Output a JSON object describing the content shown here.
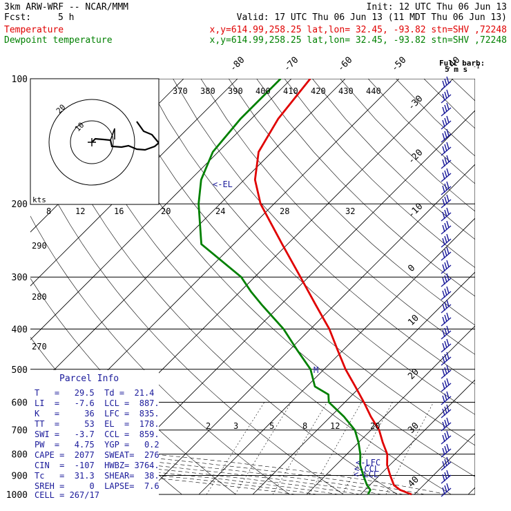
{
  "header": {
    "title": "3km ARW-WRF -- NCAR/MMM",
    "init": "Init: 12 UTC Thu 06 Jun 13",
    "fcst_label": "Fcst:",
    "fcst_value": "5 h",
    "valid": "Valid: 17 UTC Thu 06 Jun 13 (11 MDT Thu 06 Jun 13)",
    "temp_label": "Temperature",
    "dew_label": "Dewpoint temperature",
    "temp_loc": "x,y=614.99,258.25   lat,lon= 32.45, -93.82  stn=SHV ,72248",
    "dew_loc": "x,y=614.99,258.25   lat,lon= 32.45, -93.82  stn=SHV ,72248"
  },
  "colors": {
    "temperature": "#e00000",
    "dewpoint": "#008000",
    "barbs": "#1a1a9a",
    "grid": "#000000"
  },
  "barb_legend": {
    "title": "Full barb:",
    "value": "5 m s",
    "unit_sup": "-1"
  },
  "hodograph": {
    "units": "kts",
    "rings": [
      "10",
      "20"
    ]
  },
  "theta_labels": [
    "370",
    "380",
    "390",
    "400",
    "410",
    "420",
    "430",
    "440"
  ],
  "inset_temp_labels": [
    "8",
    "12",
    "16",
    "20",
    "24",
    "28",
    "32"
  ],
  "left_theta_labels": [
    "290",
    "280",
    "270"
  ],
  "mixing_ratio_labels": [
    "2",
    "3",
    "5",
    "8",
    "12",
    "20"
  ],
  "markers": {
    "el": "<-EL",
    "lfc": "<-LFC",
    "ccl": "<-CCL",
    "lcl": "<-LCL",
    "m": "M"
  },
  "parcel": {
    "title": "Parcel Info",
    "rows": [
      "T   =   29.5  Td =  21.4",
      "LI  =   -7.6  LCL =  887.",
      "K   =     36  LFC =  835.",
      "TT  =     53  EL  =  178.",
      "SWI =   -3.7  CCL =  859.",
      "PW  =   4.75  YGP =   0.2",
      "CAPE =  2077  SWEAT=  276",
      "CIN  =  -107  HWBZ= 3764.",
      "Tc   =  31.3  SHEAR=  38.",
      "SREH =     0  LAPSE=  7.6",
      "CELL = 267/17"
    ]
  },
  "chart_data": {
    "type": "line",
    "title": "3km ARW-WRF -- NCAR/MMM",
    "xlabel": "",
    "ylabel": "",
    "pressure_levels": [
      1000,
      900,
      800,
      700,
      600,
      500,
      400,
      300,
      200,
      100
    ],
    "pressure_tick_labels": [
      "100",
      "200",
      "300",
      "400",
      "500",
      "600",
      "700",
      "800",
      "900",
      "1000"
    ],
    "temperature_axis_labels": [
      "-80",
      "-70",
      "-60",
      "-50",
      "-40",
      "-30",
      "-20",
      "-10",
      "0",
      "10",
      "20",
      "30",
      "40"
    ],
    "temperature_range": [
      -40,
      40
    ],
    "pressure_range": [
      100,
      1000
    ],
    "log_pressure": true,
    "grid": true,
    "series": [
      {
        "name": "Temperature",
        "color": "#e00000",
        "points": [
          [
            1000,
            29.5
          ],
          [
            975,
            26.5
          ],
          [
            950,
            24.5
          ],
          [
            900,
            22.0
          ],
          [
            850,
            19.5
          ],
          [
            800,
            17.5
          ],
          [
            750,
            14.5
          ],
          [
            700,
            11.5
          ],
          [
            650,
            7.5
          ],
          [
            600,
            3.5
          ],
          [
            550,
            -1.0
          ],
          [
            500,
            -6.0
          ],
          [
            450,
            -11.0
          ],
          [
            400,
            -16.5
          ],
          [
            350,
            -23.5
          ],
          [
            300,
            -31.5
          ],
          [
            250,
            -41.0
          ],
          [
            200,
            -52.5
          ],
          [
            175,
            -58.0
          ],
          [
            150,
            -62.5
          ],
          [
            125,
            -65.0
          ],
          [
            100,
            -66.5
          ]
        ]
      },
      {
        "name": "Dewpoint temperature",
        "color": "#008000",
        "points": [
          [
            1000,
            21.4
          ],
          [
            975,
            21.0
          ],
          [
            950,
            19.5
          ],
          [
            900,
            17.0
          ],
          [
            850,
            14.5
          ],
          [
            800,
            12.5
          ],
          [
            750,
            10.0
          ],
          [
            700,
            7.0
          ],
          [
            650,
            2.5
          ],
          [
            600,
            -3.0
          ],
          [
            575,
            -4.5
          ],
          [
            550,
            -8.5
          ],
          [
            500,
            -12.5
          ],
          [
            450,
            -18.5
          ],
          [
            400,
            -25.0
          ],
          [
            350,
            -33.5
          ],
          [
            325,
            -38.0
          ],
          [
            300,
            -42.5
          ],
          [
            250,
            -56.0
          ],
          [
            200,
            -64.0
          ],
          [
            175,
            -68.0
          ],
          [
            150,
            -71.0
          ],
          [
            125,
            -72.0
          ],
          [
            100,
            -72.0
          ]
        ]
      }
    ]
  }
}
